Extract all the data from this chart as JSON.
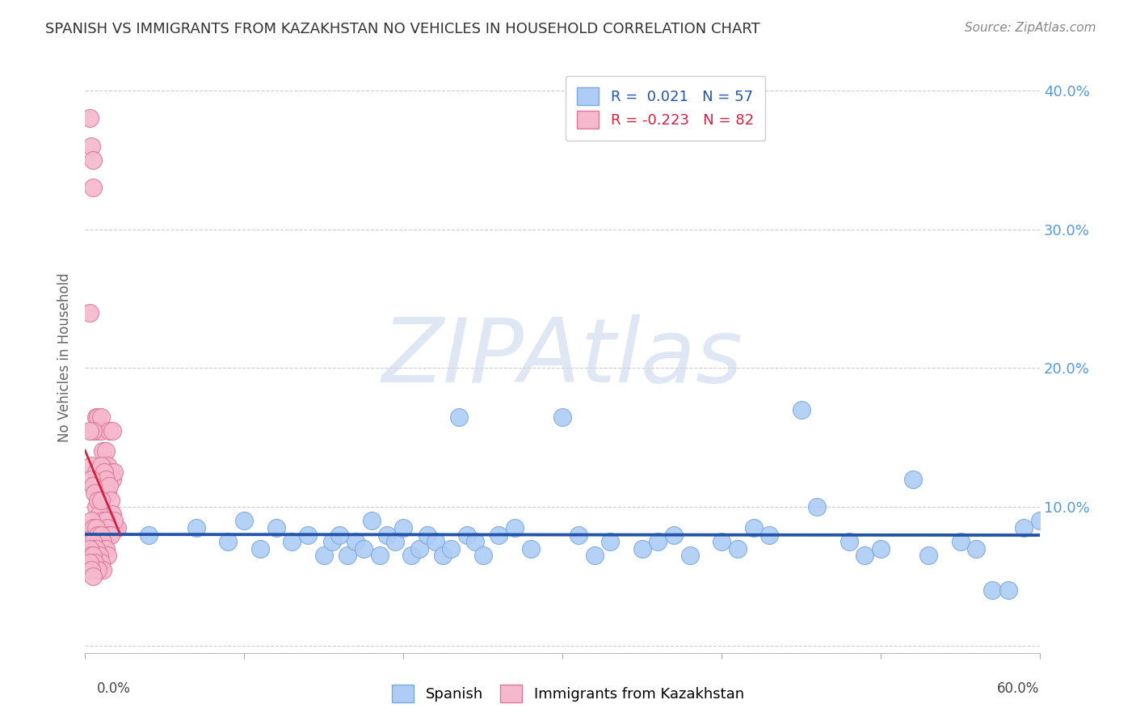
{
  "title": "SPANISH VS IMMIGRANTS FROM KAZAKHSTAN NO VEHICLES IN HOUSEHOLD CORRELATION CHART",
  "source": "Source: ZipAtlas.com",
  "ylabel": "No Vehicles in Household",
  "xlim": [
    0.0,
    0.6
  ],
  "ylim": [
    -0.005,
    0.42
  ],
  "yticks": [
    0.0,
    0.1,
    0.2,
    0.3,
    0.4
  ],
  "ytick_labels": [
    "",
    "10.0%",
    "20.0%",
    "30.0%",
    "40.0%"
  ],
  "blue_R": 0.021,
  "blue_N": 57,
  "pink_R": -0.223,
  "pink_N": 82,
  "blue_color": "#aeccf5",
  "blue_edge": "#7aaade",
  "blue_line_color": "#2255aa",
  "pink_color": "#f5b8cc",
  "pink_edge": "#dd7799",
  "pink_line_color": "#cc2244",
  "watermark": "ZIPAtlas",
  "watermark_color": "#ccd8ee",
  "background_color": "#ffffff",
  "grid_color": "#cccccc",
  "blue_scatter_x": [
    0.04,
    0.07,
    0.09,
    0.1,
    0.11,
    0.12,
    0.13,
    0.14,
    0.15,
    0.155,
    0.16,
    0.165,
    0.17,
    0.175,
    0.18,
    0.185,
    0.19,
    0.195,
    0.2,
    0.205,
    0.21,
    0.215,
    0.22,
    0.225,
    0.23,
    0.235,
    0.24,
    0.245,
    0.25,
    0.26,
    0.27,
    0.28,
    0.3,
    0.31,
    0.32,
    0.33,
    0.35,
    0.36,
    0.37,
    0.38,
    0.4,
    0.41,
    0.42,
    0.43,
    0.45,
    0.46,
    0.48,
    0.49,
    0.5,
    0.52,
    0.53,
    0.55,
    0.56,
    0.57,
    0.58,
    0.59,
    0.6
  ],
  "blue_scatter_y": [
    0.08,
    0.085,
    0.075,
    0.09,
    0.07,
    0.085,
    0.075,
    0.08,
    0.065,
    0.075,
    0.08,
    0.065,
    0.075,
    0.07,
    0.09,
    0.065,
    0.08,
    0.075,
    0.085,
    0.065,
    0.07,
    0.08,
    0.075,
    0.065,
    0.07,
    0.165,
    0.08,
    0.075,
    0.065,
    0.08,
    0.085,
    0.07,
    0.165,
    0.08,
    0.065,
    0.075,
    0.07,
    0.075,
    0.08,
    0.065,
    0.075,
    0.07,
    0.085,
    0.08,
    0.17,
    0.1,
    0.075,
    0.065,
    0.07,
    0.12,
    0.065,
    0.075,
    0.07,
    0.04,
    0.04,
    0.085,
    0.09
  ],
  "pink_scatter_x": [
    0.003,
    0.004,
    0.005,
    0.005,
    0.006,
    0.007,
    0.007,
    0.008,
    0.009,
    0.01,
    0.01,
    0.011,
    0.012,
    0.012,
    0.013,
    0.014,
    0.015,
    0.015,
    0.016,
    0.017,
    0.017,
    0.018,
    0.019,
    0.02,
    0.003,
    0.004,
    0.005,
    0.006,
    0.007,
    0.008,
    0.009,
    0.01,
    0.011,
    0.012,
    0.013,
    0.014,
    0.015,
    0.016,
    0.017,
    0.018,
    0.003,
    0.004,
    0.005,
    0.006,
    0.007,
    0.008,
    0.009,
    0.01,
    0.011,
    0.012,
    0.013,
    0.014,
    0.015,
    0.016,
    0.004,
    0.005,
    0.006,
    0.007,
    0.008,
    0.009,
    0.01,
    0.011,
    0.012,
    0.013,
    0.014,
    0.004,
    0.005,
    0.006,
    0.007,
    0.008,
    0.009,
    0.01,
    0.011,
    0.003,
    0.004,
    0.005,
    0.006,
    0.007,
    0.008,
    0.003,
    0.004,
    0.005
  ],
  "pink_scatter_y": [
    0.38,
    0.36,
    0.35,
    0.33,
    0.085,
    0.165,
    0.155,
    0.165,
    0.125,
    0.155,
    0.165,
    0.14,
    0.13,
    0.12,
    0.14,
    0.13,
    0.155,
    0.12,
    0.125,
    0.155,
    0.12,
    0.125,
    0.085,
    0.085,
    0.24,
    0.13,
    0.155,
    0.115,
    0.125,
    0.12,
    0.115,
    0.13,
    0.115,
    0.125,
    0.12,
    0.11,
    0.115,
    0.105,
    0.095,
    0.09,
    0.155,
    0.12,
    0.115,
    0.11,
    0.1,
    0.105,
    0.095,
    0.105,
    0.09,
    0.085,
    0.09,
    0.085,
    0.08,
    0.08,
    0.09,
    0.085,
    0.08,
    0.085,
    0.08,
    0.075,
    0.08,
    0.075,
    0.07,
    0.07,
    0.065,
    0.075,
    0.075,
    0.07,
    0.07,
    0.065,
    0.065,
    0.06,
    0.055,
    0.07,
    0.065,
    0.065,
    0.06,
    0.055,
    0.055,
    0.06,
    0.055,
    0.05
  ]
}
